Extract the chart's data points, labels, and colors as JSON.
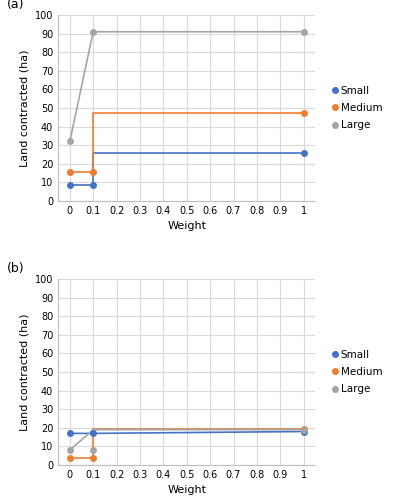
{
  "panel_a": {
    "label": "(a)",
    "small": {
      "x": [
        0,
        0.1,
        0.1,
        1
      ],
      "y": [
        8.5,
        8.5,
        26,
        26
      ]
    },
    "medium": {
      "x": [
        0,
        0.1,
        0.1,
        1
      ],
      "y": [
        15.5,
        15.5,
        47.5,
        47.5
      ]
    },
    "large": {
      "x": [
        0,
        0.0,
        0.1,
        1
      ],
      "y": [
        32,
        32,
        91,
        91
      ]
    },
    "small_markers": {
      "x": [
        0,
        0.1,
        1
      ],
      "y": [
        8.5,
        8.5,
        26
      ]
    },
    "medium_markers": {
      "x": [
        0,
        0.1,
        1
      ],
      "y": [
        15.5,
        15.5,
        47.5
      ]
    },
    "large_markers": {
      "x": [
        0,
        0.1,
        1
      ],
      "y": [
        32,
        91,
        91
      ]
    },
    "ylim": [
      0,
      100
    ],
    "yticks": [
      0,
      10,
      20,
      30,
      40,
      50,
      60,
      70,
      80,
      90,
      100
    ],
    "xticks": [
      0,
      0.1,
      0.2,
      0.3,
      0.4,
      0.5,
      0.6,
      0.7,
      0.8,
      0.9,
      1.0
    ],
    "xlabel": "Weight",
    "ylabel": "Land contracted (ha)"
  },
  "panel_b": {
    "label": "(b)",
    "small": {
      "x": [
        0,
        0.1,
        0.1,
        1
      ],
      "y": [
        17,
        17,
        17,
        18
      ]
    },
    "medium": {
      "x": [
        0,
        0.1,
        0.1,
        1
      ],
      "y": [
        4,
        4,
        19.5,
        19.5
      ]
    },
    "large": {
      "x": [
        0,
        0.0,
        0.1,
        1
      ],
      "y": [
        8,
        8,
        19,
        19
      ]
    },
    "small_markers": {
      "x": [
        0,
        0.1,
        1
      ],
      "y": [
        17,
        17,
        18
      ]
    },
    "medium_markers": {
      "x": [
        0,
        0.1,
        1
      ],
      "y": [
        4,
        4,
        19.5
      ]
    },
    "large_markers": {
      "x": [
        0,
        0.1,
        1
      ],
      "y": [
        8,
        8,
        19
      ]
    },
    "ylim": [
      0,
      100
    ],
    "yticks": [
      0,
      10,
      20,
      30,
      40,
      50,
      60,
      70,
      80,
      90,
      100
    ],
    "xticks": [
      0,
      0.1,
      0.2,
      0.3,
      0.4,
      0.5,
      0.6,
      0.7,
      0.8,
      0.9,
      1.0
    ],
    "xlabel": "Weight",
    "ylabel": "Land contracted (ha)"
  },
  "colors": {
    "small": "#4472C4",
    "medium": "#ED7D31",
    "large": "#A5A5A5"
  },
  "marker": "o",
  "markersize": 4,
  "linewidth": 1.2,
  "background_color": "#FFFFFF",
  "grid_color": "#D9D9D9",
  "label_fontsize": 8,
  "tick_fontsize": 7,
  "legend_fontsize": 7.5
}
